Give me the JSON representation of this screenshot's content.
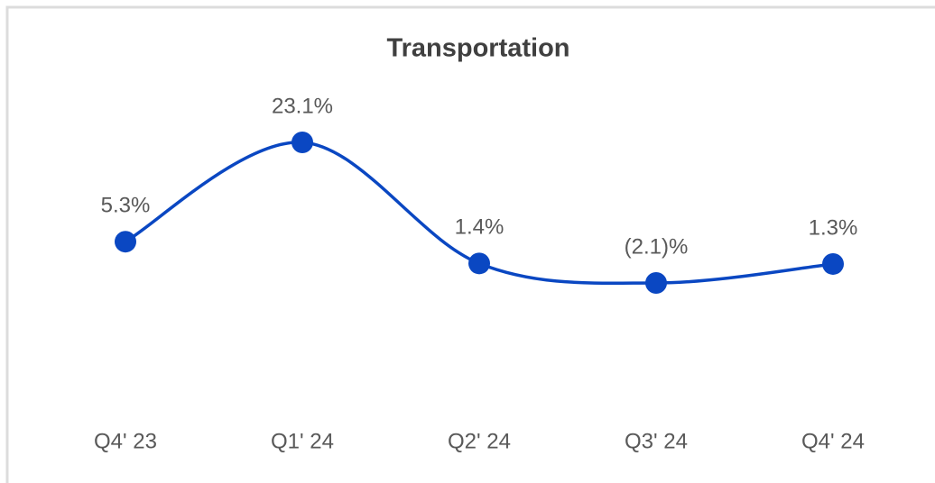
{
  "chart_data": {
    "type": "line",
    "title": "Transportation",
    "categories": [
      "Q4' 23",
      "Q1' 24",
      "Q2' 24",
      "Q3' 24",
      "Q4' 24"
    ],
    "values": [
      5.3,
      23.1,
      1.4,
      -2.1,
      1.3
    ],
    "value_labels": [
      "5.3%",
      "23.1%",
      "1.4%",
      "(2.1)%",
      "1.3%"
    ],
    "color": "#0a47c2",
    "smooth": true
  }
}
